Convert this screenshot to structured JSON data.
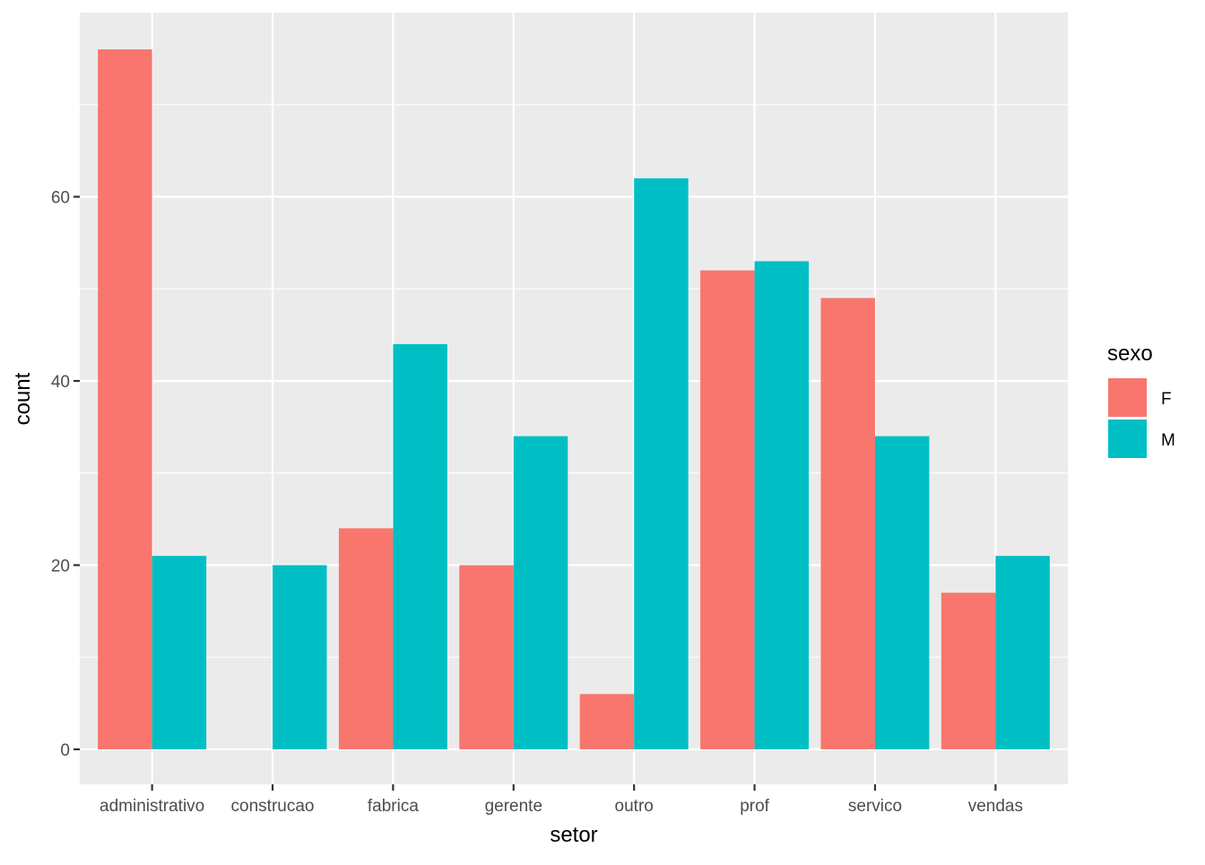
{
  "chart_data": {
    "type": "bar",
    "xlabel": "setor",
    "ylabel": "count",
    "categories": [
      "administrativo",
      "construcao",
      "fabrica",
      "gerente",
      "outro",
      "prof",
      "servico",
      "vendas"
    ],
    "series": [
      {
        "name": "F",
        "color": "#F8766D",
        "values": [
          76,
          0,
          24,
          20,
          6,
          52,
          49,
          17
        ]
      },
      {
        "name": "M",
        "color": "#00BFC4",
        "values": [
          21,
          20,
          44,
          34,
          62,
          53,
          34,
          21
        ]
      }
    ],
    "ylim": [
      -3.8,
      80.0
    ],
    "yticks": [
      0,
      20,
      40,
      60
    ],
    "legend": {
      "title": "sexo",
      "position": "right"
    },
    "grid": true,
    "panel_background": "#EBEBEB"
  }
}
